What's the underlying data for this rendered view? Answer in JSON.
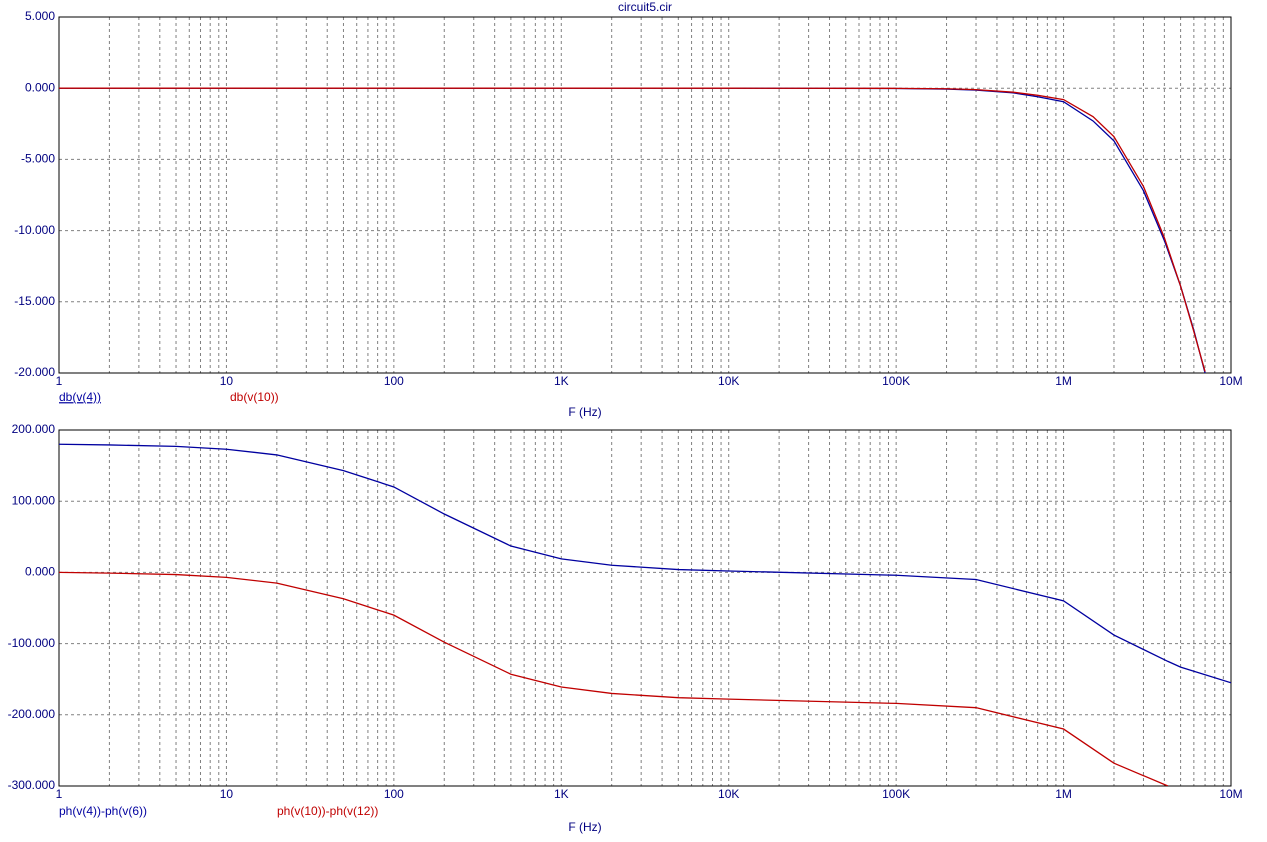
{
  "chart_data": [
    {
      "type": "line",
      "title": "circuit5.cir",
      "x_label": "F (Hz)",
      "x_scale": "log",
      "grid": true,
      "xlim": [
        1,
        10000000
      ],
      "xticks": [
        1,
        10,
        100,
        {
          "value": 1000,
          "label": "1K"
        },
        {
          "value": 10000,
          "label": "10K"
        },
        {
          "value": 100000,
          "label": "100K"
        },
        {
          "value": 1000000,
          "label": "1M"
        },
        {
          "value": 10000000,
          "label": "10M"
        }
      ],
      "ylim": [
        -20,
        5
      ],
      "yticks": [
        {
          "value": 5,
          "label": "5.000"
        },
        {
          "value": 0,
          "label": "0.000"
        },
        {
          "value": -5,
          "label": "-5.000"
        },
        {
          "value": -10,
          "label": "-10.000"
        },
        {
          "value": -15,
          "label": "-15.000"
        },
        {
          "value": -20,
          "label": "-20.000"
        }
      ],
      "x": [
        1,
        10,
        100,
        1000,
        10000,
        100000,
        200000,
        300000,
        500000,
        700000,
        1000000,
        1500000,
        2000000,
        3000000,
        4000000,
        5000000,
        6000000,
        7000000
      ],
      "series": [
        {
          "name": "db(v(4))",
          "color": "#0000a0",
          "values": [
            0,
            0,
            0,
            0,
            0,
            -0.02,
            -0.06,
            -0.13,
            -0.33,
            -0.6,
            -0.95,
            -2.3,
            -3.7,
            -7.2,
            -10.7,
            -13.9,
            -17,
            -20
          ]
        },
        {
          "name": "db(v(10))",
          "color": "#c00000",
          "values": [
            0,
            0,
            0,
            0,
            0,
            -0.01,
            -0.04,
            -0.1,
            -0.28,
            -0.5,
            -0.8,
            -2.0,
            -3.4,
            -6.9,
            -10.5,
            -13.9,
            -17.1,
            -19.9
          ]
        }
      ]
    },
    {
      "type": "line",
      "x_label": "F (Hz)",
      "x_scale": "log",
      "grid": true,
      "xlim": [
        1,
        10000000
      ],
      "xticks": [
        1,
        10,
        100,
        {
          "value": 1000,
          "label": "1K"
        },
        {
          "value": 10000,
          "label": "10K"
        },
        {
          "value": 100000,
          "label": "100K"
        },
        {
          "value": 1000000,
          "label": "1M"
        },
        {
          "value": 10000000,
          "label": "10M"
        }
      ],
      "ylim": [
        -300,
        200
      ],
      "yticks": [
        {
          "value": 200,
          "label": "200.000"
        },
        {
          "value": 100,
          "label": "100.000"
        },
        {
          "value": 0,
          "label": "0.000"
        },
        {
          "value": -100,
          "label": "-100.000"
        },
        {
          "value": -200,
          "label": "-200.000"
        },
        {
          "value": -300,
          "label": "-300.000"
        }
      ],
      "x": [
        1,
        2,
        5,
        10,
        20,
        50,
        100,
        200,
        500,
        1000,
        2000,
        5000,
        10000,
        100000,
        300000,
        1000000,
        2000000,
        4200000,
        5000000,
        10000000
      ],
      "series": [
        {
          "name": "ph(v(4))-ph(v(6))",
          "color": "#0000a0",
          "values": [
            180,
            179,
            177,
            173,
            165,
            143,
            120,
            82,
            37,
            19,
            10,
            4,
            2,
            -4,
            -10,
            -40,
            -88,
            -125,
            -133,
            -155
          ]
        },
        {
          "name": "ph(v(10))-ph(v(12))",
          "color": "#c00000",
          "values": [
            0,
            -1,
            -3,
            -7,
            -15,
            -37,
            -60,
            -98,
            -143,
            -161,
            -170,
            -176,
            -178,
            -184,
            -190,
            -220,
            -268,
            -300,
            null,
            null
          ]
        }
      ]
    }
  ]
}
